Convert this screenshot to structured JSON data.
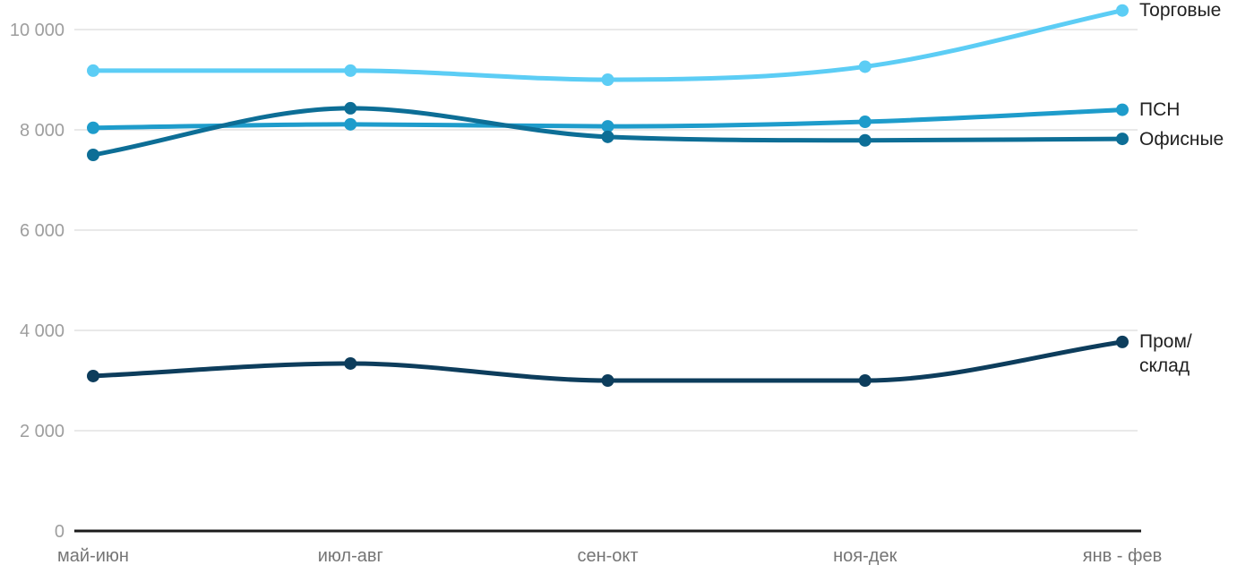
{
  "chart_data": {
    "type": "line",
    "title": "",
    "xlabel": "",
    "ylabel": "",
    "categories": [
      "май-июн",
      "июл-авг",
      "сен-окт",
      "ноя-дек",
      "янв - фев"
    ],
    "series": [
      {
        "key": "torgovye",
        "name": "Торговые",
        "label_lines": [
          "Торговые"
        ],
        "color": "#5CCDF5",
        "values": [
          9180,
          9180,
          9000,
          9260,
          10380
        ]
      },
      {
        "key": "psn",
        "name": "ПСН",
        "label_lines": [
          "ПСН"
        ],
        "color": "#1E9CCB",
        "values": [
          8040,
          8110,
          8070,
          8160,
          8400
        ]
      },
      {
        "key": "ofisnye",
        "name": "Офисные",
        "label_lines": [
          "Офисные"
        ],
        "color": "#0D6E96",
        "values": [
          7500,
          8430,
          7860,
          7790,
          7820
        ]
      },
      {
        "key": "prom-sklad",
        "name": "Пром/склад",
        "label_lines": [
          "Пром/",
          "склад"
        ],
        "color": "#0D3D5C",
        "values": [
          3090,
          3340,
          3000,
          3000,
          3770
        ]
      }
    ],
    "yticks": [
      {
        "value": 0,
        "label": "0"
      },
      {
        "value": 2000,
        "label": "2 000"
      },
      {
        "value": 4000,
        "label": "4 000"
      },
      {
        "value": 6000,
        "label": "6 000"
      },
      {
        "value": 8000,
        "label": "8 000"
      },
      {
        "value": 10000,
        "label": "10 000"
      }
    ],
    "ylim": [
      0,
      10000
    ],
    "grid": true,
    "line_smoothing": true,
    "legend_position": "end-of-line"
  },
  "colors": {
    "background": "#FFFFFF",
    "gridline": "#E9E9E9",
    "zero_axis": "#1C1C1C",
    "y_tick_label": "#9E9E9E",
    "x_tick_label": "#757575",
    "series_label": "#212121"
  }
}
